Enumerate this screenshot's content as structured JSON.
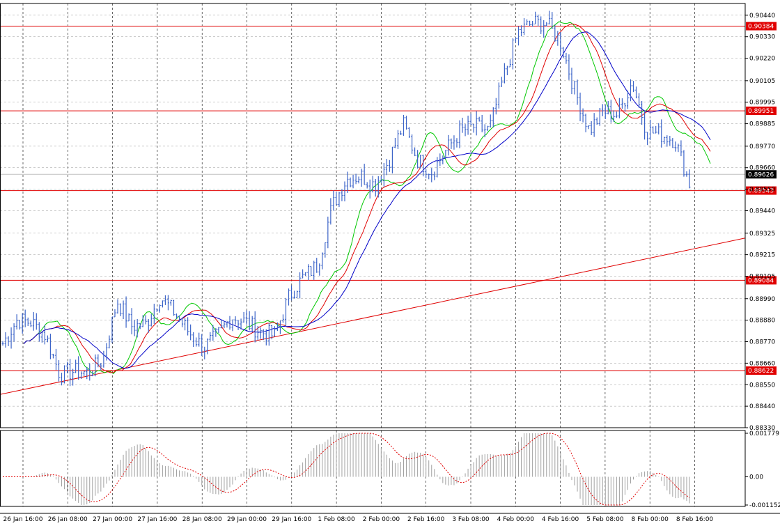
{
  "chart_data": [
    {
      "type": "candlestick",
      "title": "",
      "ylim": [
        0.8833,
        0.905
      ],
      "y_ticks": [
        "0.90440",
        "0.90330",
        "0.90220",
        "0.90105",
        "0.89995",
        "0.89885",
        "0.89770",
        "0.89660",
        "0.89550",
        "0.89440",
        "0.89325",
        "0.89215",
        "0.89105",
        "0.88990",
        "0.88880",
        "0.88770",
        "0.88660",
        "0.88550",
        "0.88440",
        "0.88330"
      ],
      "x_ticks": [
        "26 Jan 16:00",
        "26 Jan 08:00",
        "27 Jan 00:00",
        "27 Jan 16:00",
        "28 Jan 08:00",
        "29 Jan 00:00",
        "29 Jan 16:00",
        "1 Feb 08:00",
        "2 Feb 00:00",
        "2 Feb 16:00",
        "3 Feb 08:00",
        "4 Feb 00:00",
        "4 Feb 16:00",
        "5 Feb 08:00",
        "8 Feb 00:00",
        "8 Feb 16:00"
      ],
      "current_price": "0.89626",
      "horizontal_levels": [
        "0.90384",
        "0.89951",
        "0.89543",
        "0.89084",
        "0.88622"
      ],
      "trendline": {
        "from": 0.885,
        "to": 0.893
      },
      "price_path": [
        0.8876,
        0.8888,
        0.8887,
        0.888,
        0.886,
        0.8862,
        0.8861,
        0.8868,
        0.8898,
        0.8885,
        0.8886,
        0.89,
        0.8892,
        0.8882,
        0.8874,
        0.888,
        0.889,
        0.8887,
        0.8882,
        0.888,
        0.89,
        0.891,
        0.8916,
        0.8946,
        0.896,
        0.8962,
        0.8957,
        0.897,
        0.8988,
        0.897,
        0.8964,
        0.8975,
        0.8985,
        0.8987,
        0.8985,
        0.9012,
        0.9035,
        0.904,
        0.904,
        0.903,
        0.9005,
        0.8985,
        0.8995,
        0.8993,
        0.901,
        0.8985,
        0.8983,
        0.898,
        0.8958
      ],
      "moving_averages": [
        {
          "color": "#00c800"
        },
        {
          "color": "#e00000"
        },
        {
          "color": "#0000c8"
        }
      ],
      "candle_color": "#3c64c8"
    },
    {
      "type": "oscillator",
      "ylim": [
        -0.001152,
        0.001779
      ],
      "y_ticks": [
        "0.001779",
        "0.00",
        "-0.001152"
      ],
      "histogram_color": "#a0a0a0",
      "signal_color": "#e00000"
    }
  ]
}
